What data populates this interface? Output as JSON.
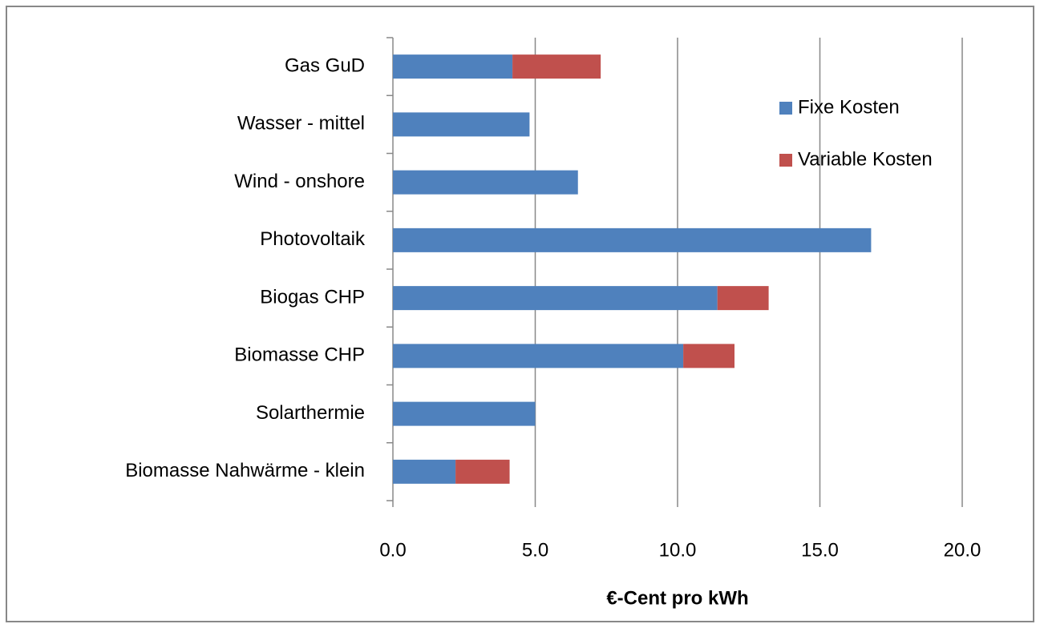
{
  "chart_data": {
    "type": "bar",
    "orientation": "horizontal",
    "stacked": true,
    "xlabel": "€-Cent pro kWh",
    "categories": [
      "Gas GuD",
      "Wasser - mittel",
      "Wind - onshore",
      "Photovoltaik",
      "Biogas CHP",
      "Biomasse CHP",
      "Solarthermie",
      "Biomasse Nahwärme - klein"
    ],
    "series": [
      {
        "name": "Fixe Kosten",
        "color": "#4f81bd",
        "values": [
          4.2,
          4.8,
          6.5,
          16.8,
          11.4,
          10.2,
          5.0,
          2.2
        ]
      },
      {
        "name": "Variable Kosten",
        "color": "#c0504d",
        "values": [
          3.1,
          null,
          null,
          null,
          1.8,
          1.8,
          null,
          1.9
        ]
      }
    ],
    "xlim": [
      0,
      20
    ],
    "xticks": [
      {
        "value": 0,
        "label": "0.0"
      },
      {
        "value": 5,
        "label": "5.0"
      },
      {
        "value": 10,
        "label": "10.0"
      },
      {
        "value": 15,
        "label": "15.0"
      },
      {
        "value": 20,
        "label": "20.0"
      }
    ],
    "grid": true,
    "legend": "upper right"
  }
}
